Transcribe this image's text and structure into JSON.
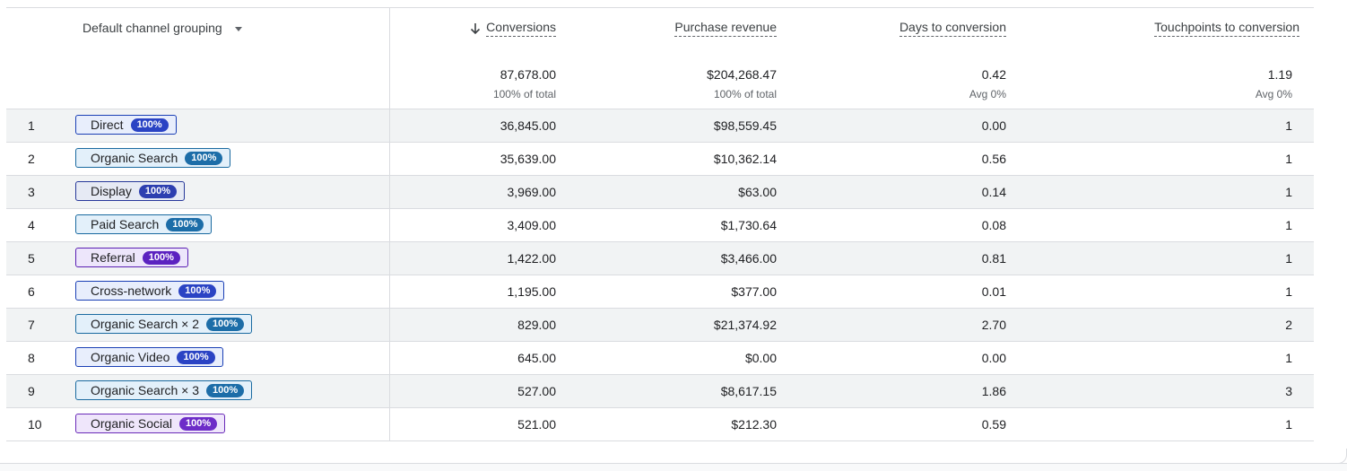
{
  "header": {
    "dimension_label": "Default channel grouping",
    "metrics": [
      {
        "label": "Conversions",
        "total": "87,678.00",
        "sub": "100% of total",
        "sorted": true
      },
      {
        "label": "Purchase revenue",
        "total": "$204,268.47",
        "sub": "100% of total",
        "sorted": false
      },
      {
        "label": "Days to conversion",
        "total": "0.42",
        "sub": "Avg 0%",
        "sorted": false
      },
      {
        "label": "Touchpoints to conversion",
        "total": "1.19",
        "sub": "Avg 0%",
        "sorted": false
      }
    ]
  },
  "chip_styles": {
    "blue": {
      "bg": "#e8eefc",
      "border": "#1a3fb5",
      "text": "#202124",
      "pill": "#2a43c4"
    },
    "teal": {
      "bg": "#e3f0fa",
      "border": "#1a6aa0",
      "text": "#202124",
      "pill": "#1c6da8"
    },
    "slate": {
      "bg": "#e6eaf4",
      "border": "#27389a",
      "text": "#202124",
      "pill": "#2d3fb0"
    },
    "purple": {
      "bg": "#ede6fb",
      "border": "#5a1eb3",
      "text": "#202124",
      "pill": "#5b22c0"
    },
    "violet": {
      "bg": "#efe6fb",
      "border": "#6a2ab8",
      "text": "#202124",
      "pill": "#6d2cc8"
    }
  },
  "rows": [
    {
      "num": "1",
      "channel": "Direct",
      "pct": "100%",
      "style": "blue",
      "conversions": "36,845.00",
      "revenue": "$98,559.45",
      "days": "0.00",
      "touchpoints": "1"
    },
    {
      "num": "2",
      "channel": "Organic Search",
      "pct": "100%",
      "style": "teal",
      "conversions": "35,639.00",
      "revenue": "$10,362.14",
      "days": "0.56",
      "touchpoints": "1"
    },
    {
      "num": "3",
      "channel": "Display",
      "pct": "100%",
      "style": "slate",
      "conversions": "3,969.00",
      "revenue": "$63.00",
      "days": "0.14",
      "touchpoints": "1"
    },
    {
      "num": "4",
      "channel": "Paid Search",
      "pct": "100%",
      "style": "teal",
      "conversions": "3,409.00",
      "revenue": "$1,730.64",
      "days": "0.08",
      "touchpoints": "1"
    },
    {
      "num": "5",
      "channel": "Referral",
      "pct": "100%",
      "style": "purple",
      "conversions": "1,422.00",
      "revenue": "$3,466.00",
      "days": "0.81",
      "touchpoints": "1"
    },
    {
      "num": "6",
      "channel": "Cross-network",
      "pct": "100%",
      "style": "blue",
      "conversions": "1,195.00",
      "revenue": "$377.00",
      "days": "0.01",
      "touchpoints": "1"
    },
    {
      "num": "7",
      "channel": "Organic Search × 2",
      "pct": "100%",
      "style": "teal",
      "conversions": "829.00",
      "revenue": "$21,374.92",
      "days": "2.70",
      "touchpoints": "2"
    },
    {
      "num": "8",
      "channel": "Organic Video",
      "pct": "100%",
      "style": "blue",
      "conversions": "645.00",
      "revenue": "$0.00",
      "days": "0.00",
      "touchpoints": "1"
    },
    {
      "num": "9",
      "channel": "Organic Search × 3",
      "pct": "100%",
      "style": "teal",
      "conversions": "527.00",
      "revenue": "$8,617.15",
      "days": "1.86",
      "touchpoints": "3"
    },
    {
      "num": "10",
      "channel": "Organic Social",
      "pct": "100%",
      "style": "violet",
      "conversions": "521.00",
      "revenue": "$212.30",
      "days": "0.59",
      "touchpoints": "1"
    }
  ]
}
